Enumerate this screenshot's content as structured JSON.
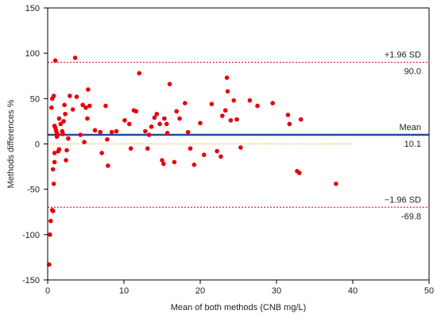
{
  "chart_data": {
    "type": "scatter",
    "xlabel": "Mean of both methods (CNB mg/L)",
    "ylabel": "Methods differences %",
    "xlim": [
      0,
      50
    ],
    "ylim": [
      -150,
      150
    ],
    "xticks": [
      0,
      10,
      20,
      30,
      40,
      50
    ],
    "yticks": [
      -150,
      -100,
      -50,
      0,
      50,
      100,
      150
    ],
    "grid": false,
    "colors": {
      "points": "#e8000b",
      "mean_line": "#1f4e9c",
      "sd_lines": "#cc0000",
      "zero_line": "#e8a040",
      "axis": "#000000"
    },
    "reference_lines": [
      {
        "name": "upper",
        "label": "+1.96 SD",
        "value_label": "90.0",
        "y": 90.0,
        "style": "dotted"
      },
      {
        "name": "mean",
        "label": "Mean",
        "value_label": "10.1",
        "y": 10.1,
        "style": "solid"
      },
      {
        "name": "lower",
        "label": "−1.96 SD",
        "value_label": "-69.8",
        "y": -69.8,
        "style": "dotted"
      }
    ],
    "zero_line": {
      "y": 0,
      "x_end": 40
    },
    "points": [
      {
        "x": 0.2,
        "y": -133
      },
      {
        "x": 0.3,
        "y": -100
      },
      {
        "x": 0.4,
        "y": -85
      },
      {
        "x": 0.6,
        "y": -73
      },
      {
        "x": 0.7,
        "y": -74
      },
      {
        "x": 0.8,
        "y": -44
      },
      {
        "x": 0.7,
        "y": -28
      },
      {
        "x": 0.9,
        "y": -20
      },
      {
        "x": 0.9,
        "y": -10
      },
      {
        "x": 0.5,
        "y": 40
      },
      {
        "x": 0.6,
        "y": 50
      },
      {
        "x": 0.8,
        "y": 53
      },
      {
        "x": 0.9,
        "y": 20
      },
      {
        "x": 1.0,
        "y": 18
      },
      {
        "x": 1.1,
        "y": 15
      },
      {
        "x": 1.2,
        "y": 12
      },
      {
        "x": 1.3,
        "y": 10
      },
      {
        "x": 1.0,
        "y": 92
      },
      {
        "x": 1.2,
        "y": 8
      },
      {
        "x": 1.4,
        "y": -8
      },
      {
        "x": 1.5,
        "y": -6
      },
      {
        "x": 1.5,
        "y": 28
      },
      {
        "x": 1.7,
        "y": 22
      },
      {
        "x": 1.9,
        "y": 14
      },
      {
        "x": 2.0,
        "y": 11
      },
      {
        "x": 2.1,
        "y": 25
      },
      {
        "x": 2.3,
        "y": 33
      },
      {
        "x": 2.2,
        "y": 43
      },
      {
        "x": 2.4,
        "y": -18
      },
      {
        "x": 2.5,
        "y": -7
      },
      {
        "x": 2.7,
        "y": 6
      },
      {
        "x": 2.9,
        "y": 53
      },
      {
        "x": 3.3,
        "y": 38
      },
      {
        "x": 3.6,
        "y": 95
      },
      {
        "x": 3.8,
        "y": 52
      },
      {
        "x": 4.3,
        "y": 10
      },
      {
        "x": 4.6,
        "y": 43
      },
      {
        "x": 4.8,
        "y": 2
      },
      {
        "x": 5.0,
        "y": 40
      },
      {
        "x": 5.2,
        "y": 28
      },
      {
        "x": 5.3,
        "y": 60
      },
      {
        "x": 5.5,
        "y": 42
      },
      {
        "x": 6.2,
        "y": 15
      },
      {
        "x": 6.9,
        "y": 13
      },
      {
        "x": 7.1,
        "y": -10
      },
      {
        "x": 7.6,
        "y": 42
      },
      {
        "x": 7.8,
        "y": 5
      },
      {
        "x": 7.9,
        "y": -24
      },
      {
        "x": 8.4,
        "y": 13
      },
      {
        "x": 9.0,
        "y": 14
      },
      {
        "x": 10.1,
        "y": 26
      },
      {
        "x": 10.7,
        "y": 22
      },
      {
        "x": 10.9,
        "y": -5
      },
      {
        "x": 11.3,
        "y": 37
      },
      {
        "x": 11.6,
        "y": 36
      },
      {
        "x": 12.0,
        "y": 78
      },
      {
        "x": 12.8,
        "y": 14
      },
      {
        "x": 13.1,
        "y": -5
      },
      {
        "x": 13.3,
        "y": 10
      },
      {
        "x": 13.6,
        "y": 19
      },
      {
        "x": 14.0,
        "y": 29
      },
      {
        "x": 14.3,
        "y": 33
      },
      {
        "x": 14.7,
        "y": 22
      },
      {
        "x": 15.0,
        "y": -18
      },
      {
        "x": 15.3,
        "y": 28
      },
      {
        "x": 15.2,
        "y": -22
      },
      {
        "x": 15.6,
        "y": 22
      },
      {
        "x": 15.7,
        "y": 12
      },
      {
        "x": 16.0,
        "y": 66
      },
      {
        "x": 16.6,
        "y": -20
      },
      {
        "x": 16.9,
        "y": 36
      },
      {
        "x": 17.3,
        "y": 28
      },
      {
        "x": 18.0,
        "y": 45
      },
      {
        "x": 18.4,
        "y": 13
      },
      {
        "x": 18.7,
        "y": -5
      },
      {
        "x": 19.2,
        "y": -23
      },
      {
        "x": 20.0,
        "y": 23
      },
      {
        "x": 20.5,
        "y": -12
      },
      {
        "x": 21.5,
        "y": 44
      },
      {
        "x": 22.2,
        "y": -8
      },
      {
        "x": 22.7,
        "y": -14
      },
      {
        "x": 22.9,
        "y": 31
      },
      {
        "x": 23.3,
        "y": 37
      },
      {
        "x": 23.5,
        "y": 73
      },
      {
        "x": 23.6,
        "y": 58
      },
      {
        "x": 24.0,
        "y": 26
      },
      {
        "x": 24.4,
        "y": 48
      },
      {
        "x": 24.8,
        "y": 27
      },
      {
        "x": 25.3,
        "y": -4
      },
      {
        "x": 26.5,
        "y": 48
      },
      {
        "x": 27.5,
        "y": 42
      },
      {
        "x": 29.5,
        "y": 45
      },
      {
        "x": 31.5,
        "y": 32
      },
      {
        "x": 31.7,
        "y": 22
      },
      {
        "x": 32.7,
        "y": -30
      },
      {
        "x": 33.0,
        "y": -32
      },
      {
        "x": 33.2,
        "y": 27
      },
      {
        "x": 37.8,
        "y": -44
      }
    ]
  }
}
